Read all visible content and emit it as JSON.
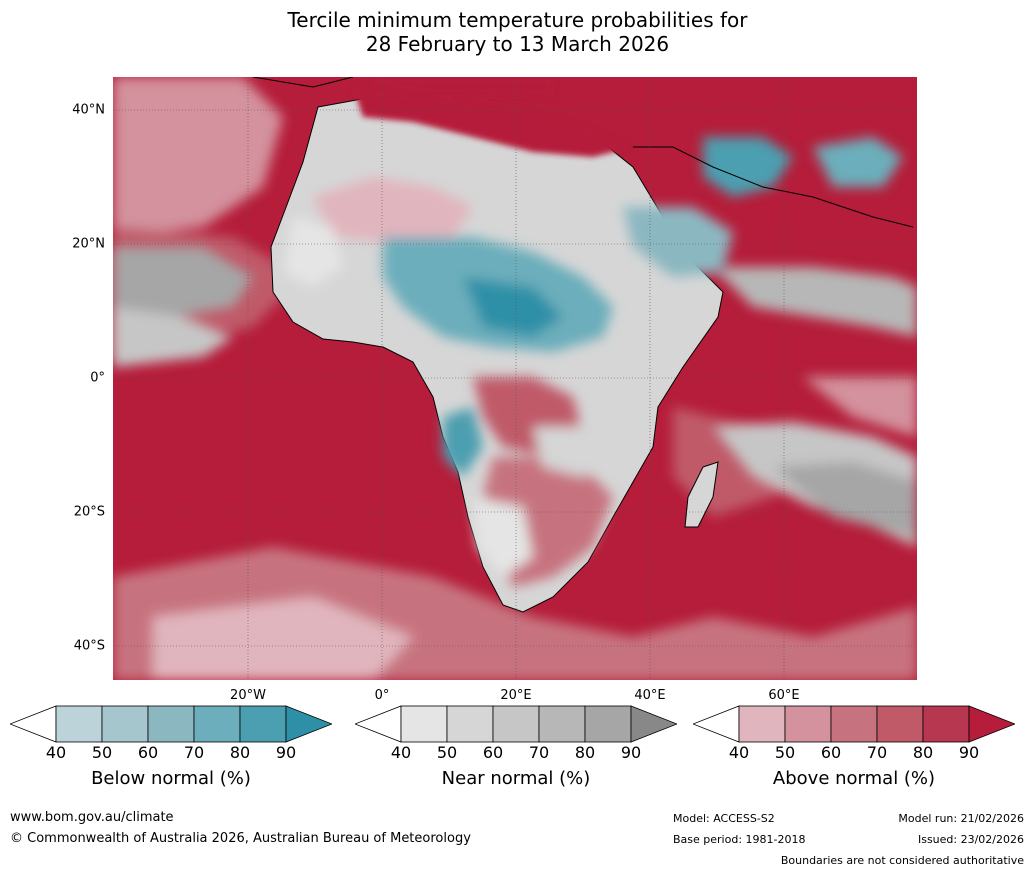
{
  "title": {
    "line1": "Tercile minimum temperature probabilities for",
    "line2": "28 February to 13 March 2026"
  },
  "map": {
    "lat_labels": [
      "40°N",
      "20°N",
      "0°",
      "20°S",
      "40°S"
    ],
    "lon_labels": [
      "20°W",
      "0°",
      "20°E",
      "40°E",
      "60°E"
    ]
  },
  "colorbars": [
    {
      "label": "Below normal (%)",
      "ticks": [
        "40",
        "50",
        "60",
        "70",
        "80",
        "90"
      ],
      "colors": [
        "#ffffff",
        "#bcd3da",
        "#a5c6cc",
        "#8bb7c1",
        "#6caebb",
        "#4b9fb0",
        "#2d90a7"
      ]
    },
    {
      "label": "Near normal (%)",
      "ticks": [
        "40",
        "50",
        "60",
        "70",
        "80",
        "90"
      ],
      "colors": [
        "#ffffff",
        "#e5e5e5",
        "#d6d6d6",
        "#c6c6c6",
        "#b7b7b7",
        "#a6a6a6",
        "#888888"
      ]
    },
    {
      "label": "Above normal (%)",
      "ticks": [
        "40",
        "50",
        "60",
        "70",
        "80",
        "90"
      ],
      "colors": [
        "#ffffff",
        "#e1b5bd",
        "#d3929d",
        "#c7737f",
        "#c05a69",
        "#b73750",
        "#b51d3a"
      ]
    }
  ],
  "footer": {
    "website": "www.bom.gov.au/climate",
    "copyright": "© Commonwealth of Australia 2026, Australian Bureau of Meteorology",
    "model": "Model: ACCESS-S2",
    "base_period": "Base period: 1981-2018",
    "model_run": "Model run: 21/02/2026",
    "issued": "Issued: 23/02/2026",
    "disclaimer": "Boundaries are not considered authoritative"
  }
}
